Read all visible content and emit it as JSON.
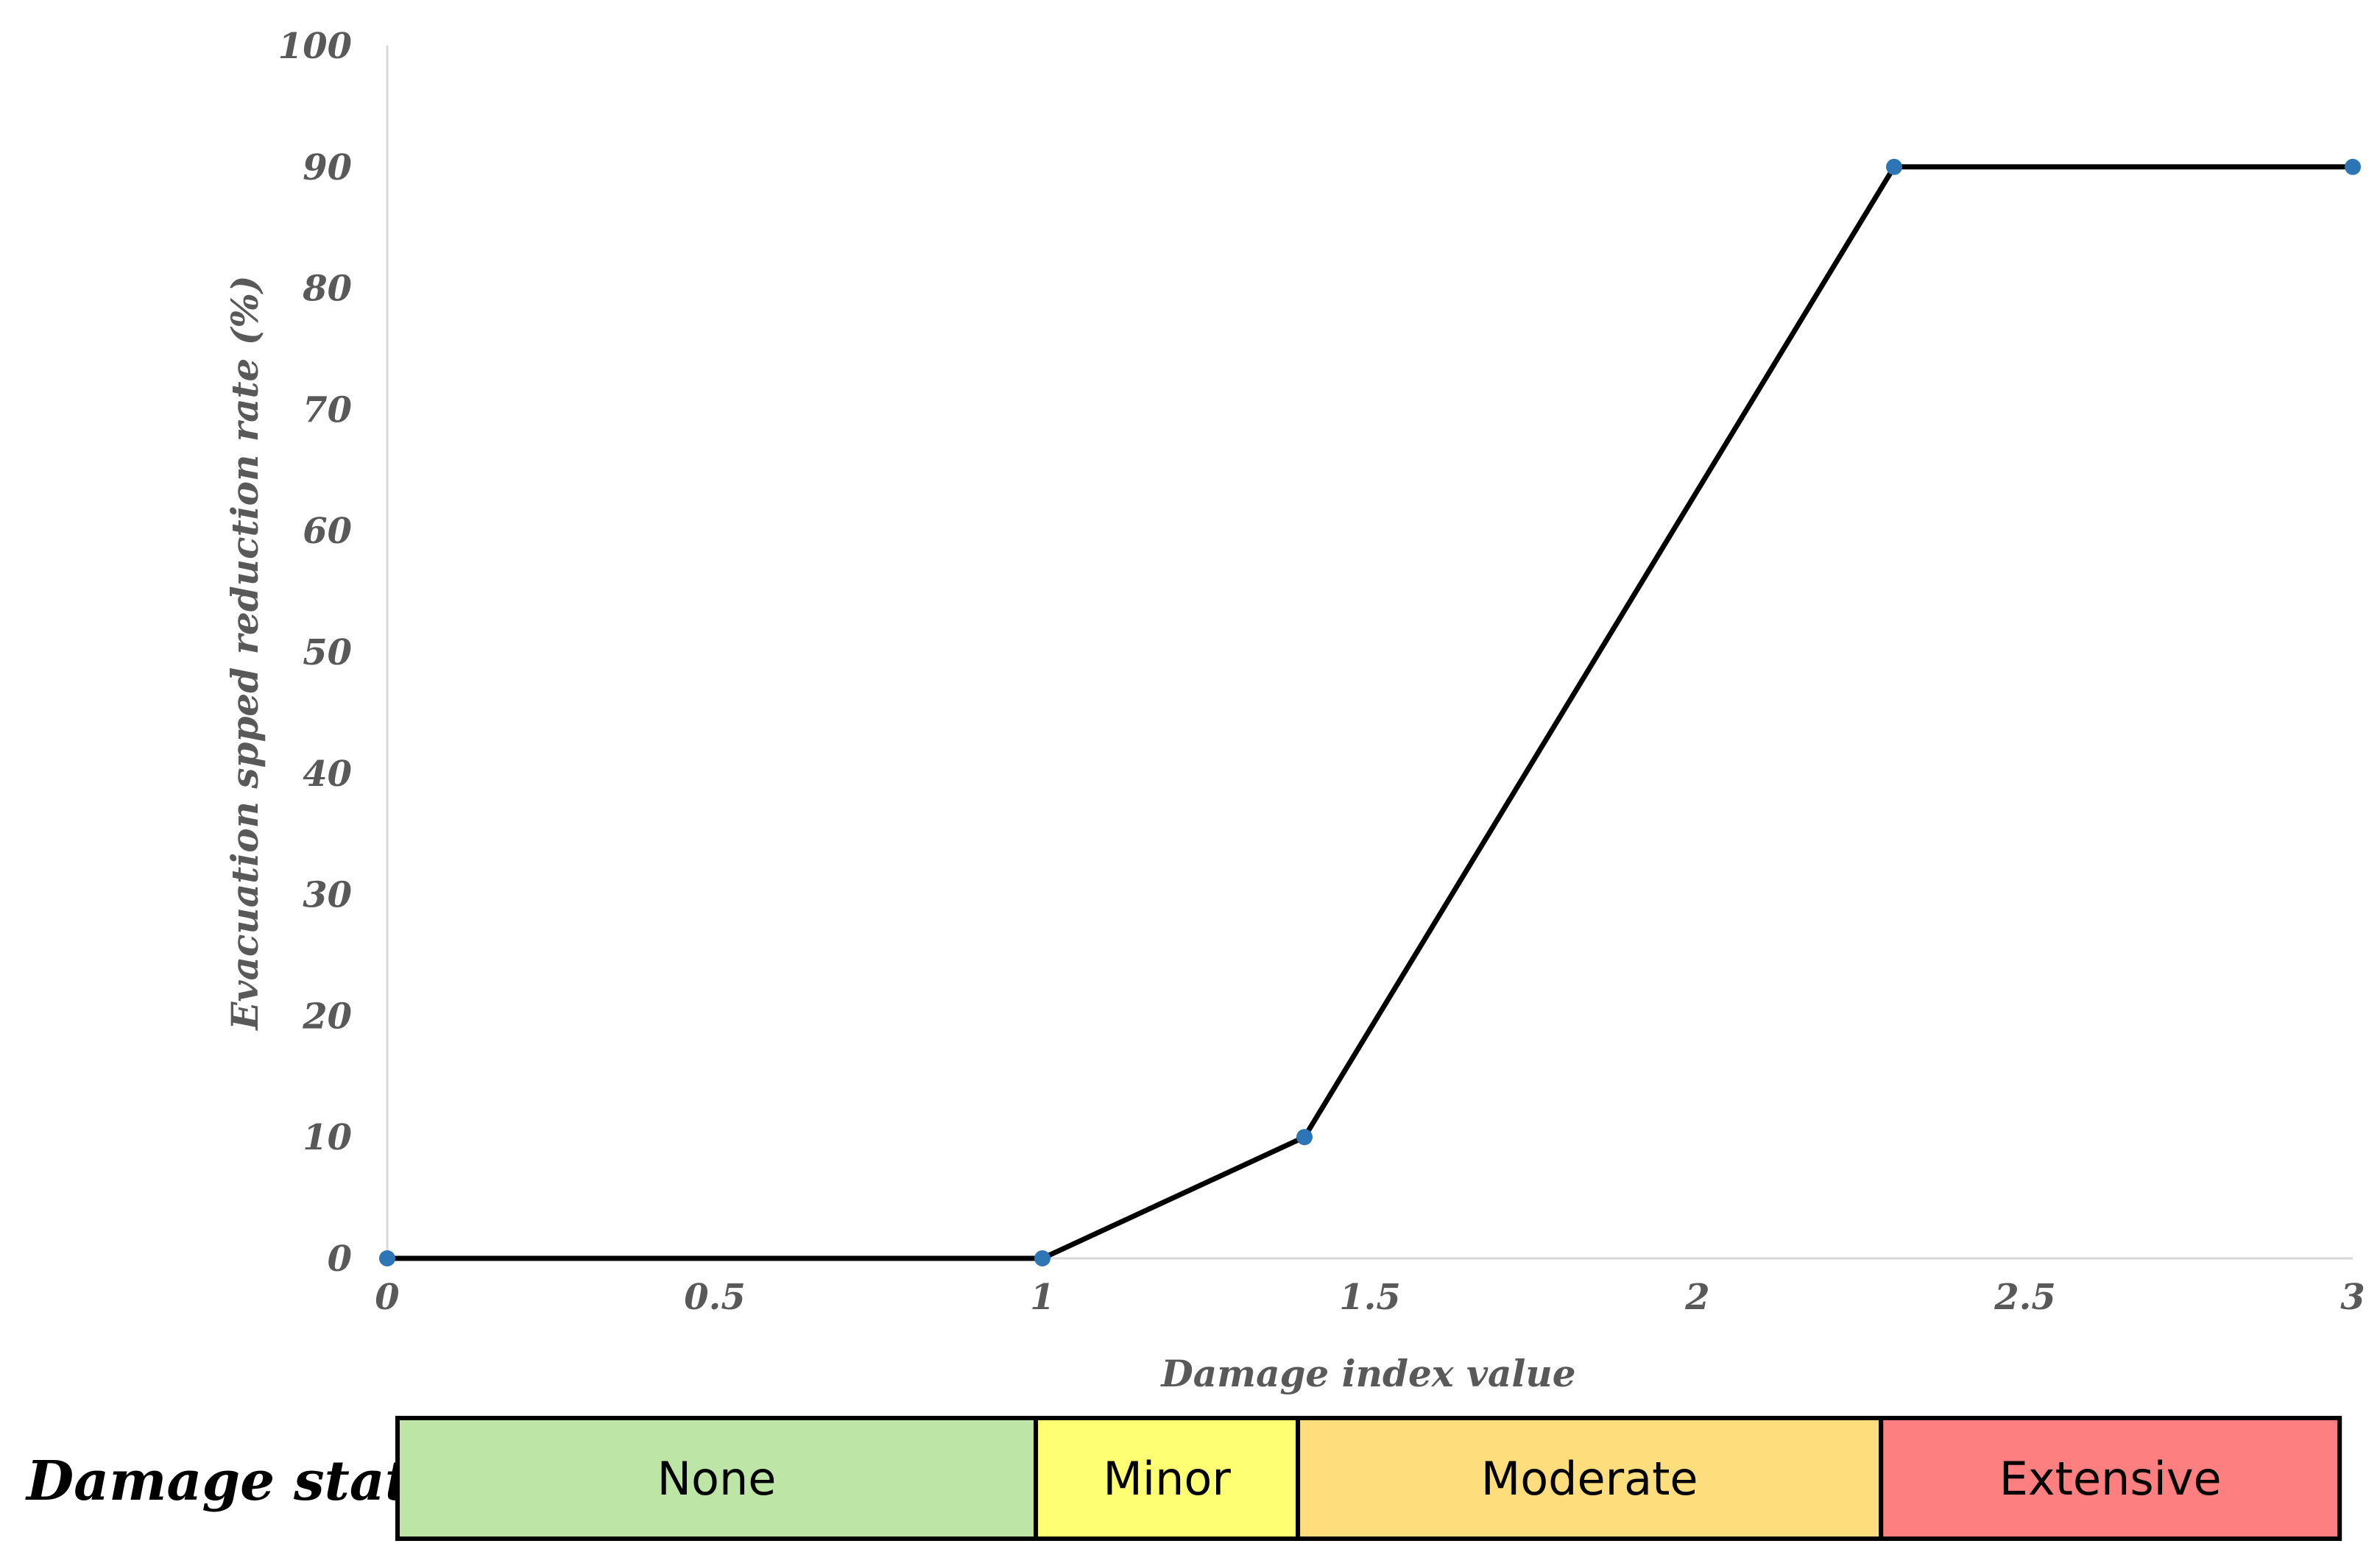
{
  "chart_data": {
    "type": "line",
    "xlabel": "Damage index value",
    "ylabel": "Evacuation spped reduction rate (%)",
    "xlim": [
      0,
      3
    ],
    "ylim": [
      0,
      100
    ],
    "x_ticks": [
      "0",
      "0.5",
      "1",
      "1.5",
      "2",
      "2.5",
      "3"
    ],
    "y_ticks": [
      "0",
      "10",
      "20",
      "30",
      "40",
      "50",
      "60",
      "70",
      "80",
      "90",
      "100"
    ],
    "x_tick_values": [
      0,
      0.5,
      1,
      1.5,
      2,
      2.5,
      3
    ],
    "y_tick_values": [
      0,
      10,
      20,
      30,
      40,
      50,
      60,
      70,
      80,
      90,
      100
    ],
    "points": [
      {
        "x": 0,
        "y": 0
      },
      {
        "x": 1,
        "y": 0
      },
      {
        "x": 1.4,
        "y": 10
      },
      {
        "x": 2.3,
        "y": 90
      },
      {
        "x": 3,
        "y": 90
      }
    ],
    "line_color": "#000000",
    "marker_color": "#2E75B6",
    "grid": false
  },
  "damage_state": {
    "title": "Damage state",
    "states": [
      {
        "label": "None",
        "from": 0,
        "to": 0.99,
        "color": "#BDE5A5"
      },
      {
        "label": "Minor",
        "from": 0.99,
        "to": 1.39,
        "color": "#FEFF72"
      },
      {
        "label": "Moderate",
        "from": 1.39,
        "to": 2.28,
        "color": "#FEDD7C"
      },
      {
        "label": "Extensive",
        "from": 2.28,
        "to": 2.98,
        "color": "#FE7F7F"
      }
    ]
  }
}
